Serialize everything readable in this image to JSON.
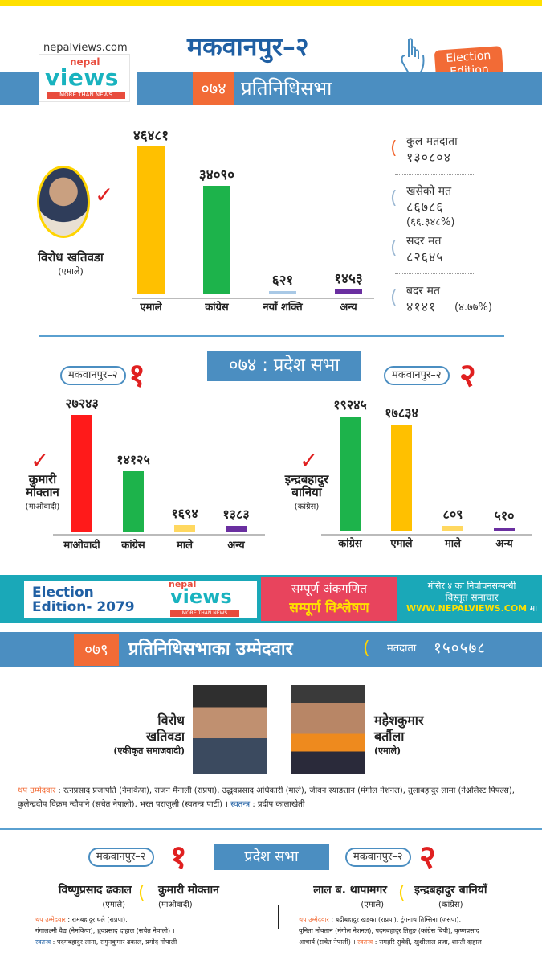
{
  "site": "nepalviews.com",
  "logo": {
    "nepal": "nepal",
    "views": "views",
    "tagline": "MORE THAN NEWS"
  },
  "header": {
    "title": "मकवानपुर–२",
    "badge_line1": "Election",
    "badge_line2": "Edition"
  },
  "pr074": {
    "year": "०७४",
    "title": "प्रतिनिधिसभा",
    "winner": {
      "name": "विरोध खतिवडा",
      "party": "(एमाले)"
    },
    "stats": [
      {
        "label": "कुल मतदाता",
        "value": "१३०८०४",
        "sub": ""
      },
      {
        "label": "खसेको मत",
        "value": "८६७८६",
        "sub": "(६६.३४८%)"
      },
      {
        "label": "सदर मत",
        "value": "८२६४५",
        "sub": ""
      },
      {
        "label": "बदर मत",
        "value": "४१४१",
        "sub": "(४.७७%)"
      }
    ]
  },
  "pradesh074": {
    "head": "०७४ : प्रदेश सभा",
    "c1": {
      "pill": "मकवानपुर–२",
      "num": "१",
      "winner_line1": "कुमारी",
      "winner_line2": "मोक्तान",
      "winner_party": "(माओवादी)"
    },
    "c2": {
      "pill": "मकवानपुर–२",
      "num": "२",
      "winner_line1": "इन्द्रबहादुर",
      "winner_line2": "बानिया",
      "winner_party": "(कांग्रेस)"
    }
  },
  "chart_data": [
    {
      "type": "bar",
      "categories": [
        "एमाले",
        "कांग्रेस",
        "नयाँ शक्ति",
        "अन्य"
      ],
      "values": [
        46481,
        34090,
        621,
        1453
      ],
      "value_labels": [
        "४६४८१",
        "३४०९०",
        "६२१",
        "१४५३"
      ],
      "colors": [
        "#ffc000",
        "#1db34b",
        "#a9c9e6",
        "#6a2fa0"
      ],
      "ylim": [
        0,
        46481
      ]
    },
    {
      "type": "bar",
      "categories": [
        "माओवादी",
        "कांग्रेस",
        "माले",
        "अन्य"
      ],
      "values": [
        27243,
        14125,
        1694,
        1383
      ],
      "value_labels": [
        "२७२४३",
        "१४१२५",
        "१६९४",
        "१३८३"
      ],
      "colors": [
        "#ff1a1a",
        "#1db34b",
        "#ffd860",
        "#6a2fa0"
      ],
      "ylim": [
        0,
        27243
      ]
    },
    {
      "type": "bar",
      "categories": [
        "कांग्रेस",
        "एमाले",
        "माले",
        "अन्य"
      ],
      "values": [
        19245,
        17834,
        809,
        510
      ],
      "value_labels": [
        "१९२४५",
        "१७८३४",
        "८०९",
        "५१०"
      ],
      "colors": [
        "#1db34b",
        "#ffc000",
        "#ffd860",
        "#6a2fa0"
      ],
      "ylim": [
        0,
        19245
      ]
    }
  ],
  "banner": {
    "ee_line1": "Election",
    "ee_line2": "Edition- 2079",
    "pink_line1": "सम्पूर्ण अंकगणित",
    "pink_line2": "सम्पूर्ण विश्लेषण",
    "right_line1": "मंसिर ४ का निर्वाचनसम्बन्धी",
    "right_line2": "विस्तृत समाचार",
    "right_url": "WWW.NEPALVIEWS.COM",
    "right_suffix": " मा"
  },
  "pr079": {
    "year": "०७९",
    "title": "प्रतिनिधिसभाका उम्मेदवार",
    "voters_label": "मतदाता",
    "voters_value": "१५०५७८",
    "c1": {
      "line1": "विरोध",
      "line2": "खतिवडा",
      "party": "(एकीकृत समाजवादी)"
    },
    "c2": {
      "line1": "महेशकुमार",
      "line2": "बर्तौला",
      "party": "(एमाले)"
    },
    "others_label": "थप उम्मेदवार",
    "others_text": " : रत्नप्रसाद प्रजापति (नेमकिपा), राजन मैनाली (राप्रपा), उद्धवप्रसाद अधिकारी (माले), जीवन स्याङतान (मंगोल नेशनल), तुलाबहादुर लामा (नेश्नलिस्ट पिपल्स), कुलेन्द्रदीप विक्रम न्दौपाने (सचेत नेपाली), भरत पराजुली (स्वतन्त्र पार्टी) ।",
    "ind_label": " स्वतन्त्र",
    "ind_text": " : प्रदीप कालाखेती"
  },
  "pradesh079": {
    "head": "प्रदेश सभा",
    "c1": {
      "pill": "मकवानपुर–२",
      "num": "१",
      "cand_a": "विष्णुप्रसाद ढकाल",
      "party_a": "(एमाले)",
      "cand_b": "कुमारी मोक्तान",
      "party_b": "(माओवादी)",
      "others_label": "थप उम्मेदवार",
      "others_line1": " : रामबहादुर घले (राप्रपा),",
      "others_line2": "गंगालक्ष्मी वैद्य (नेमकिपा), ध्रुवप्रसाद दाहाल (सचेत नेपाली) ।",
      "ind_label": "स्वतन्त्र",
      "ind_text": " : पदमबहादुर लामा, सगुनकुमार ढकाल, प्रमोद गोपाली"
    },
    "c2": {
      "pill": "मकवानपुर–२",
      "num": "२",
      "cand_a": "लाल ब. थापामगर",
      "party_a": "(एमाले)",
      "cand_b": "इन्द्रबहादुर बानियाँ",
      "party_b": "(कांग्रेस)",
      "others_label": "थप उम्मेदवार",
      "others_line1": " : बद्रीबहादुर खड्का (राप्रपा), टुंगनाथ तिम्सिना (जसपा),",
      "others_line2": "युनिता मोक्तान (मंगोल नेशनल), पदमबहादुर तितुङ (कांग्रेस बिपी), कृष्णप्रसाद",
      "others_line3": "आचार्य (सचेत नेपाली) ।",
      "ind_label": "स्वतन्त्र",
      "ind_text": " : रामहरि सुवेदी, खुशीलाल प्रजा, शान्ती दाहाल"
    }
  }
}
